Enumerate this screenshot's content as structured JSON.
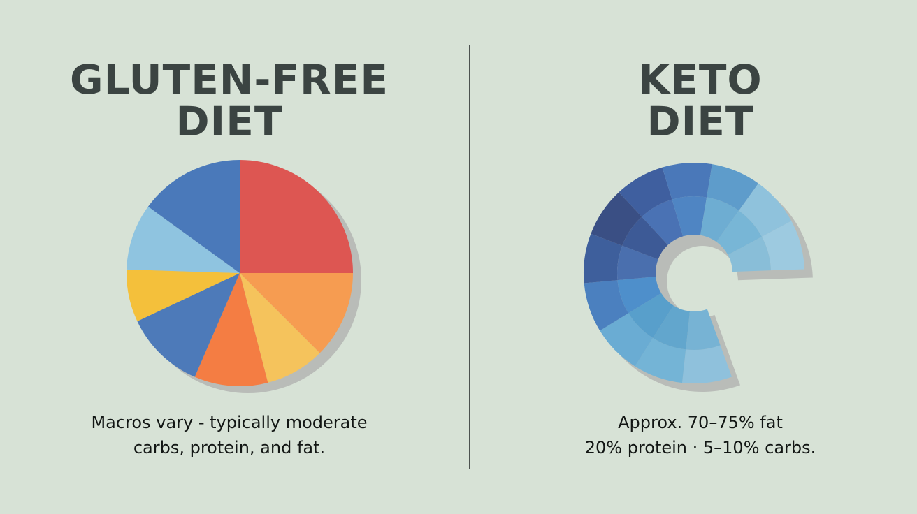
{
  "chart_data": [
    {
      "type": "pie",
      "title": "GLUTEN-FREE DIET",
      "title_lines": [
        "GLUTEN-FREE",
        "DIET"
      ],
      "caption_lines": [
        "Macros vary - typically moderate",
        "carbs, protein, and fat."
      ],
      "slices": [
        {
          "label": "",
          "value": 25.0,
          "color": "#dd5652"
        },
        {
          "label": "",
          "value": 12.5,
          "color": "#f69c51"
        },
        {
          "label": "",
          "value": 8.5,
          "color": "#f5c35c"
        },
        {
          "label": "",
          "value": 10.5,
          "color": "#f47d43"
        },
        {
          "label": "",
          "value": 11.5,
          "color": "#4d7ab9"
        },
        {
          "label": "",
          "value": 7.5,
          "color": "#f4c03b"
        },
        {
          "label": "",
          "value": 9.5,
          "color": "#8fc4e0"
        },
        {
          "label": "",
          "value": 15.0,
          "color": "#4a79ba"
        }
      ]
    },
    {
      "type": "pie",
      "title": "KETO DIET",
      "title_lines": [
        "KETO",
        "DIET"
      ],
      "caption_lines": [
        "Approx. 70–75% fat",
        "20% protein · 5–10% carbs."
      ],
      "gap_percent": 20,
      "slices": [
        {
          "label": "",
          "value": 10,
          "outer": "#8fc1dc",
          "inner": "#77b3d4"
        },
        {
          "label": "",
          "value": 10,
          "outer": "#74b4d6",
          "inner": "#62a6cd"
        },
        {
          "label": "",
          "value": 10,
          "outer": "#6aacd3",
          "inner": "#589fcb"
        },
        {
          "label": "",
          "value": 10,
          "outer": "#4b80bf",
          "inner": "#4e8fcb"
        },
        {
          "label": "",
          "value": 10,
          "outer": "#3e5f9c",
          "inner": "#4a6fae"
        },
        {
          "label": "",
          "value": 10,
          "outer": "#3a4f84",
          "inner": "#3d5a96"
        },
        {
          "label": "",
          "value": 10,
          "outer": "#3f5f9f",
          "inner": "#4a72b4"
        },
        {
          "label": "",
          "value": 10,
          "outer": "#4a78b9",
          "inner": "#4f85c3"
        },
        {
          "label": "",
          "value": 10,
          "outer": "#5e9ccb",
          "inner": "#6eadd2"
        },
        {
          "label": "",
          "value": 10,
          "outer": "#8fc2dc",
          "inner": "#78b6d6"
        },
        {
          "label": "",
          "value": 10,
          "outer": "#9dcae0",
          "inner": "#89bed8"
        }
      ]
    }
  ],
  "colors": {
    "background": "#d7e2d6",
    "divider": "#4c524f",
    "shadow": "#b9bcb8"
  }
}
